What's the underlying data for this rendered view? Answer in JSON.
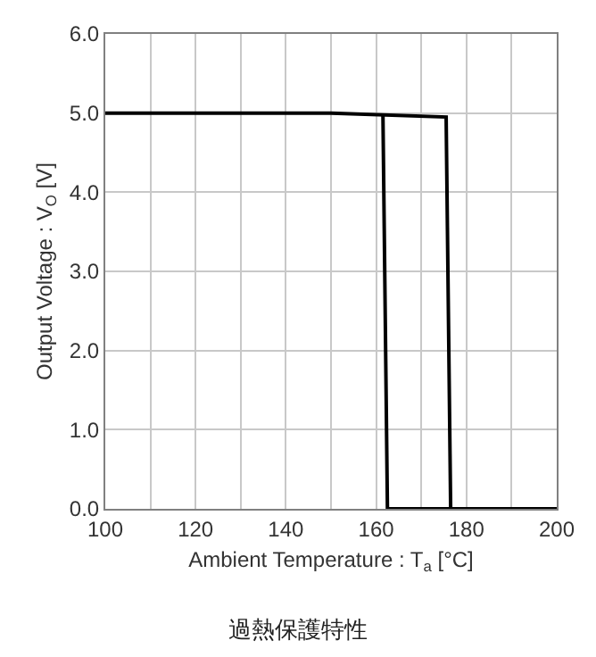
{
  "chart_data": {
    "type": "line",
    "title": "過熱保護特性",
    "xlabel": "Ambient Temperature : T$_{a}$ [°C]",
    "ylabel": "Output Voltage : V$_{O}$ [V]",
    "series": [
      {
        "color": "#000000",
        "x": [
          100,
          150,
          175.5,
          176.5,
          200
        ],
        "values": [
          5.0,
          5.0,
          4.95,
          0,
          0
        ]
      },
      {
        "color": "#000000",
        "x": [
          200,
          162.5,
          161.5
        ],
        "values": [
          0,
          0,
          4.98
        ]
      }
    ],
    "xlim": [
      100,
      200
    ],
    "xticks": [
      100,
      {
        "value": 110,
        "label": null
      },
      120,
      {
        "value": 130,
        "label": null
      },
      140,
      {
        "value": 150,
        "label": null
      },
      160,
      {
        "value": 170,
        "label": null
      },
      180,
      {
        "value": 190,
        "label": null
      },
      200
    ],
    "ylim": [
      0,
      6
    ],
    "yticks": [
      {
        "value": 0,
        "label": "0.0"
      },
      {
        "value": 1,
        "label": "1.0"
      },
      {
        "value": 2,
        "label": "2.0"
      },
      {
        "value": 3,
        "label": "3.0"
      },
      {
        "value": 4,
        "label": "4.0"
      },
      {
        "value": 5,
        "label": "5.0"
      },
      {
        "value": 6,
        "label": "6.0"
      }
    ],
    "grid": true,
    "marker": "none",
    "line_style": "solid"
  }
}
